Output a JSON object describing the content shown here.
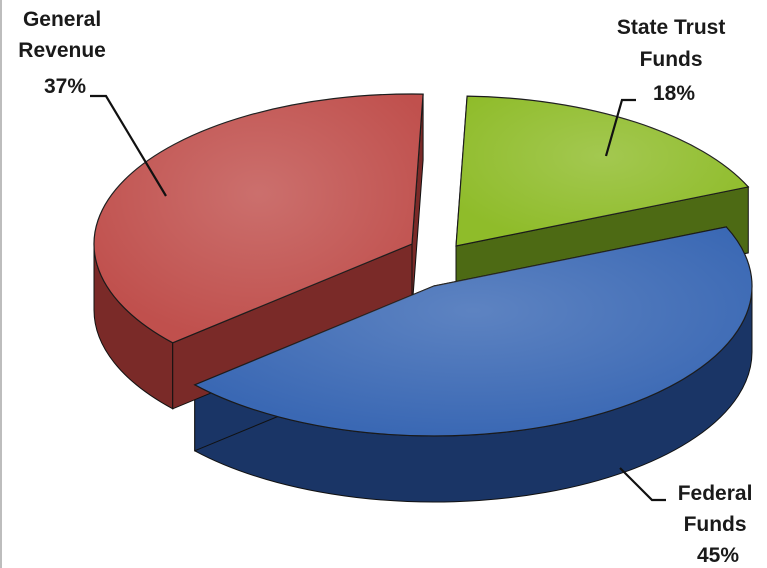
{
  "chart_data": {
    "type": "pie",
    "style": "3d-exploded",
    "title": "",
    "legend": "none",
    "slices": [
      {
        "name": "General Revenue",
        "label_lines": [
          "General",
          "Revenue",
          "37%"
        ],
        "value": 37,
        "unit": "%",
        "color": "#c0504d",
        "side_color": "#7a2a28"
      },
      {
        "name": "State Trust Funds",
        "label_lines": [
          "State Trust",
          "Funds",
          "18%"
        ],
        "value": 18,
        "unit": "%",
        "color": "#8fbc2a",
        "side_color": "#4d6a14"
      },
      {
        "name": "Federal Funds",
        "label_lines": [
          "Federal",
          "Funds",
          "45%"
        ],
        "value": 45,
        "unit": "%",
        "color": "#3a68b4",
        "side_color": "#1a3566"
      }
    ]
  }
}
